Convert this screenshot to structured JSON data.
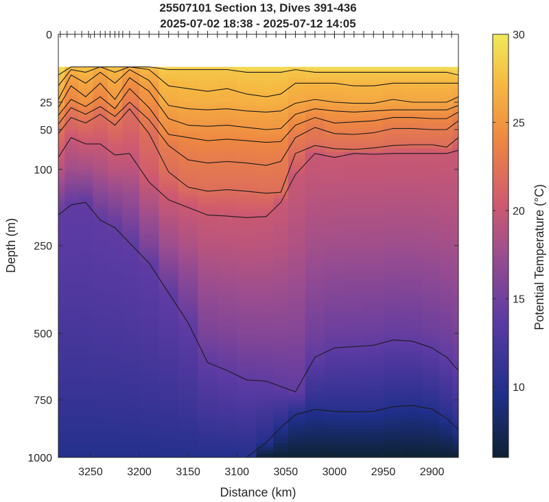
{
  "chart_data": {
    "type": "heatmap",
    "title": "25507101 Section 13, Dives 391-436",
    "subtitle": "2025-07-02 18:38 - 2025-07-12 14:05",
    "xlabel": "Distance (km)",
    "ylabel": "Depth (m)",
    "x_direction": "reversed",
    "xlim": [
      3283,
      2873
    ],
    "y_scale": "piecewise (0-100 m expanded, 100-1000 m compressed)",
    "ylim": [
      0,
      1000
    ],
    "x_ticks": [
      3250,
      3200,
      3150,
      3100,
      3050,
      3000,
      2950,
      2900
    ],
    "y_ticks": [
      0,
      25,
      50,
      100,
      250,
      500,
      750,
      1000
    ],
    "y_tick_labels": [
      "0",
      "25",
      "50",
      "100",
      "250",
      "500",
      "750",
      "1000"
    ],
    "data_top_depth": 12,
    "dive_marker_distances": [
      3281,
      3274,
      3266,
      3259,
      3252,
      3246,
      3240,
      3235,
      3230,
      3225,
      3221,
      3217,
      3210,
      3200,
      3190,
      3180,
      3170,
      3160,
      3150,
      3140,
      3130,
      3120,
      3110,
      3100,
      3090,
      3080,
      3070,
      3060,
      3050,
      3040,
      3030,
      3020,
      3010,
      3000,
      2990,
      2980,
      2970,
      2960,
      2950,
      2940,
      2930,
      2920,
      2910,
      2900,
      2890,
      2880
    ],
    "colorbar": {
      "label": "Potential Temperature (°C)",
      "range": [
        6,
        30
      ],
      "ticks": [
        10,
        15,
        20,
        25,
        30
      ],
      "colormap": "thermal (dark navy - purple - pink - orange - yellow)",
      "colors": [
        "#0d2233",
        "#1f2f8a",
        "#5a3aa3",
        "#9b4d8f",
        "#cf5a6f",
        "#ee8742",
        "#f6b742",
        "#f0ea5a"
      ]
    },
    "columns_distance": [
      3283,
      3270,
      3255,
      3240,
      3225,
      3210,
      3190,
      3170,
      3150,
      3130,
      3110,
      3090,
      3070,
      3055,
      3040,
      3020,
      3000,
      2980,
      2960,
      2940,
      2920,
      2900,
      2885,
      2873
    ],
    "contour_levels": [
      10,
      14,
      20,
      22,
      23,
      24,
      25,
      26,
      27,
      28
    ],
    "isotherm_depths": {
      "10": [
        1000,
        1000,
        1000,
        1000,
        1000,
        1000,
        1000,
        1000,
        1000,
        1000,
        1000,
        1000,
        935,
        870,
        815,
        792,
        800,
        802,
        800,
        780,
        775,
        790,
        830,
        880
      ],
      "14": [
        190,
        170,
        165,
        200,
        215,
        245,
        300,
        385,
        470,
        610,
        640,
        675,
        680,
        700,
        720,
        590,
        555,
        550,
        545,
        525,
        530,
        555,
        590,
        640
      ],
      "20": [
        85,
        60,
        68,
        68,
        82,
        80,
        125,
        160,
        175,
        190,
        192,
        195,
        193,
        165,
        110,
        80,
        85,
        80,
        81,
        80,
        80,
        80,
        80,
        76
      ],
      "22": [
        55,
        39,
        44,
        36,
        46,
        31,
        55,
        105,
        135,
        143,
        140,
        143,
        147,
        145,
        80,
        70,
        74,
        75,
        73,
        70,
        69,
        69,
        72,
        60
      ],
      "23": [
        45,
        30,
        36,
        29,
        38,
        25,
        41,
        70,
        88,
        92,
        90,
        92,
        95,
        90,
        60,
        48,
        55,
        56,
        54,
        49,
        49,
        50,
        50,
        42
      ],
      "24": [
        37,
        24,
        29,
        23,
        31,
        20,
        30,
        56,
        60,
        64,
        62,
        64,
        66,
        65,
        46,
        39,
        44,
        43,
        42,
        39,
        39,
        40,
        40,
        34
      ],
      "25": [
        30,
        19,
        23,
        18,
        24,
        16,
        21,
        40,
        46,
        47,
        46,
        48,
        50,
        49,
        36,
        31,
        33,
        34,
        33,
        32,
        32,
        32,
        32,
        28
      ],
      "26": [
        24,
        15,
        18,
        14,
        18,
        13,
        17,
        28,
        31,
        32,
        31,
        33,
        34,
        33,
        26,
        24,
        25,
        26,
        26,
        24,
        25,
        25,
        25,
        23
      ],
      "27": [
        19,
        13,
        14,
        12,
        14,
        12,
        13,
        19,
        20,
        21,
        20,
        22,
        23,
        22,
        18,
        18,
        18,
        19,
        19,
        18,
        18,
        18,
        18,
        18
      ],
      "28": [
        15,
        12,
        12,
        12,
        12,
        12,
        12,
        13,
        13,
        13,
        13,
        14,
        14,
        14,
        13,
        14,
        14,
        14,
        14,
        14,
        14,
        14,
        14,
        15
      ]
    },
    "bottom_temperature": 6
  }
}
